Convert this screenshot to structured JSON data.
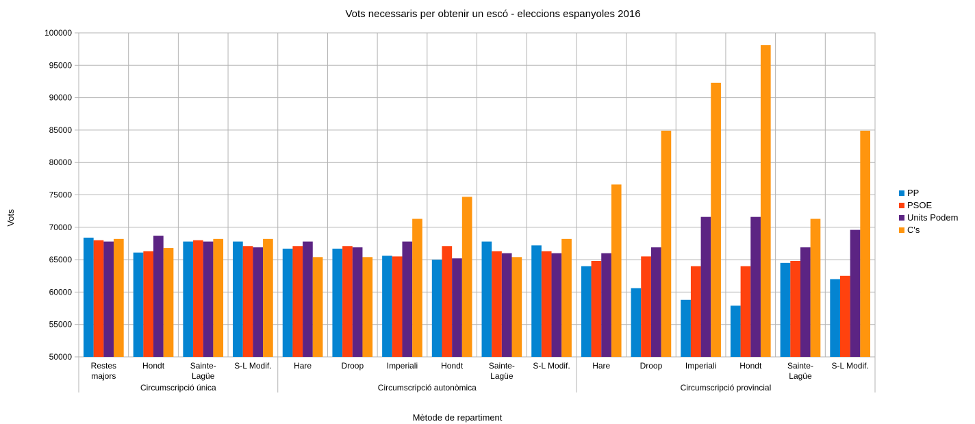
{
  "chart_data": {
    "type": "bar",
    "title": "Vots necessaris per obtenir un escó - eleccions espanyoles 2016",
    "xlabel": "Mètode de repartiment",
    "ylabel": "Vots",
    "ylim": [
      50000,
      100000
    ],
    "ytick_step": 5000,
    "grid": true,
    "legend_position": "right",
    "categories": [
      [
        "Restes",
        "majors"
      ],
      [
        "Hondt"
      ],
      [
        "Sainte-",
        "Lagüe"
      ],
      [
        "S-L Modif."
      ],
      [
        "Hare"
      ],
      [
        "Droop"
      ],
      [
        "Imperiali"
      ],
      [
        "Hondt"
      ],
      [
        "Sainte-",
        "Lagüe"
      ],
      [
        "S-L Modif."
      ],
      [
        "Hare"
      ],
      [
        "Droop"
      ],
      [
        "Imperiali"
      ],
      [
        "Hondt"
      ],
      [
        "Sainte-",
        "Lagüe"
      ],
      [
        "S-L Modif."
      ]
    ],
    "groups": [
      {
        "label": "Circumscripció única",
        "start": 0,
        "end": 4
      },
      {
        "label": "Circumscripció autonòmica",
        "start": 4,
        "end": 10
      },
      {
        "label": "Circumscripció provincial",
        "start": 10,
        "end": 16
      }
    ],
    "series": [
      {
        "name": "PP",
        "color": "#0484d1",
        "values": [
          68400,
          66100,
          67800,
          67800,
          66700,
          66700,
          65600,
          65000,
          67800,
          67200,
          64000,
          60600,
          58800,
          57900,
          64500,
          62000
        ]
      },
      {
        "name": "PSOE",
        "color": "#ff420e",
        "values": [
          68000,
          66300,
          68000,
          67100,
          67100,
          67100,
          65500,
          67100,
          66300,
          66300,
          64800,
          65500,
          64000,
          64000,
          64800,
          62500
        ]
      },
      {
        "name": "Units Podem",
        "color": "#5c2483",
        "values": [
          67800,
          68700,
          67800,
          66900,
          67800,
          66900,
          67800,
          65200,
          66000,
          66000,
          66000,
          66900,
          71600,
          71600,
          66900,
          69600
        ]
      },
      {
        "name": "C's",
        "color": "#ff950e",
        "values": [
          68200,
          66800,
          68200,
          68200,
          65400,
          65400,
          71300,
          74700,
          65400,
          68200,
          76600,
          84900,
          92300,
          98100,
          71300,
          84900
        ]
      }
    ]
  }
}
